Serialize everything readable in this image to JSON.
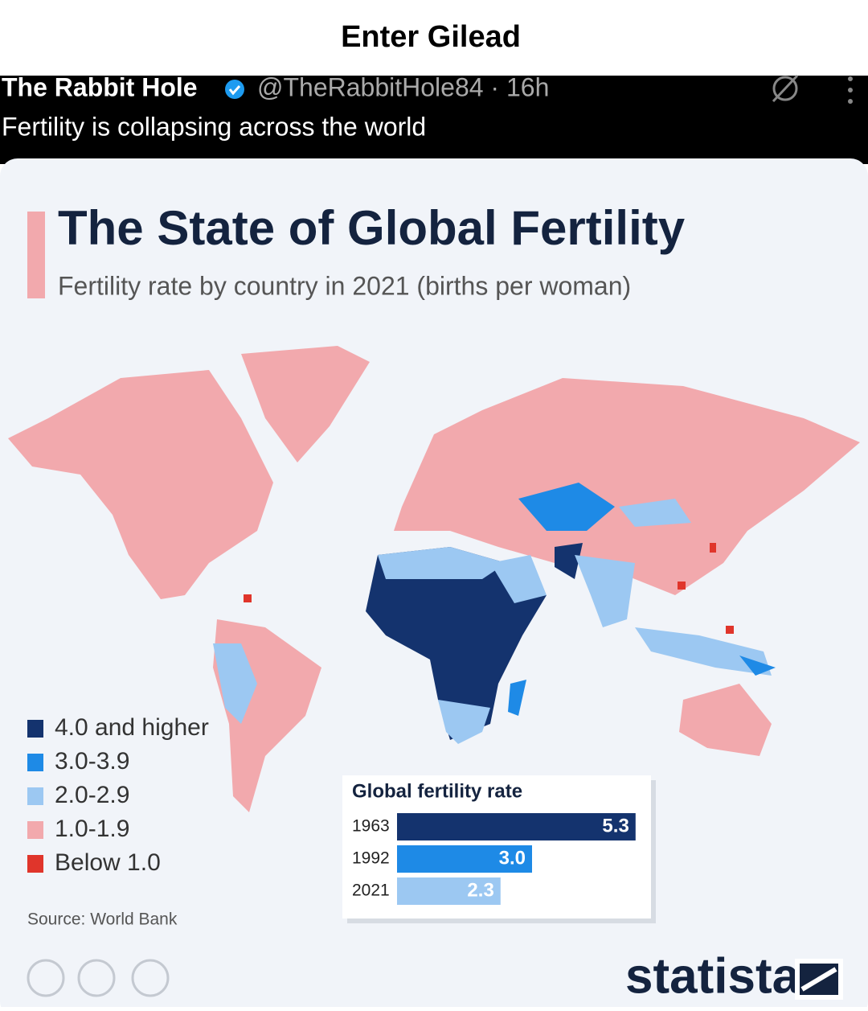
{
  "header": {
    "title": "Enter Gilead"
  },
  "tweet": {
    "author": "The Rabbit Hole",
    "handle": "@TheRabbitHole84 · 16h",
    "text": "Fertility is collapsing across the world"
  },
  "infographic": {
    "title": "The State of Global Fertility",
    "subtitle": "Fertility rate by country in 2021 (births per woman)",
    "legend": [
      {
        "label": "4.0 and higher",
        "color": "#14336e"
      },
      {
        "label": "3.0-3.9",
        "color": "#1e8ae6"
      },
      {
        "label": "2.0-2.9",
        "color": "#9cc8f2"
      },
      {
        "label": "1.0-1.9",
        "color": "#f2a9ad"
      },
      {
        "label": "Below 1.0",
        "color": "#e0352b"
      }
    ],
    "source": "Source: World Bank",
    "brand": "statista"
  },
  "chart_data": {
    "type": "bar",
    "orientation": "horizontal",
    "title": "Global fertility rate",
    "categories": [
      "1963",
      "1992",
      "2021"
    ],
    "values": [
      5.3,
      3.0,
      2.3
    ],
    "value_labels": [
      "5.3",
      "3.0",
      "2.3"
    ],
    "colors": [
      "#14336e",
      "#1e8ae6",
      "#9cc8f2"
    ]
  }
}
